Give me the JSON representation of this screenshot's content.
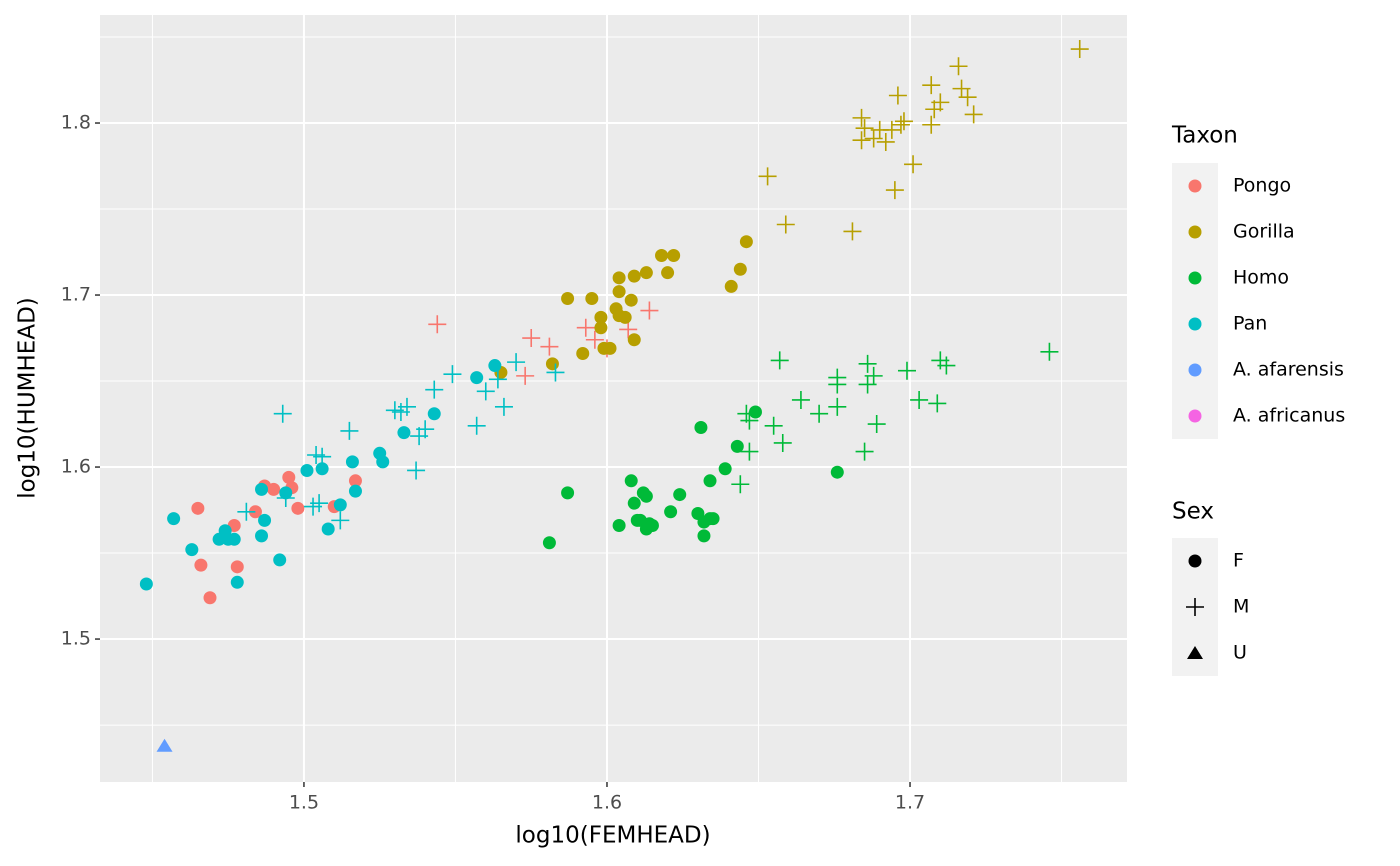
{
  "chart_data": {
    "type": "scatter",
    "x_label": "log10(FEMHEAD)",
    "y_label": "log10(HUMHEAD)",
    "xlim": [
      1.4327,
      1.7716
    ],
    "ylim": [
      1.4169,
      1.8628
    ],
    "xticks": [
      {
        "value": 1.5,
        "label": "1.5"
      },
      {
        "value": 1.6,
        "label": "1.6"
      },
      {
        "value": 1.7,
        "label": "1.7"
      }
    ],
    "yticks": [
      {
        "value": 1.5,
        "label": "1.5"
      },
      {
        "value": 1.6,
        "label": "1.6"
      },
      {
        "value": 1.7,
        "label": "1.7"
      },
      {
        "value": 1.8,
        "label": "1.8"
      }
    ],
    "grid": true,
    "color_legend_title": "Taxon",
    "shape_legend": {
      "title": "Sex",
      "labels": [
        "F",
        "M",
        "U"
      ],
      "shapes": [
        "circle",
        "plus",
        "triangle"
      ]
    },
    "series": [
      {
        "name": "Pongo",
        "color": "#F8766D",
        "x": [
          1.465,
          1.466,
          1.469,
          1.477,
          1.478,
          1.484,
          1.487,
          1.49,
          1.495,
          1.496,
          1.498,
          1.51,
          1.517,
          1.544,
          1.575,
          1.573,
          1.581,
          1.593,
          1.596,
          1.6,
          1.607,
          1.614
        ],
        "y": [
          1.576,
          1.543,
          1.524,
          1.566,
          1.542,
          1.574,
          1.589,
          1.587,
          1.594,
          1.588,
          1.576,
          1.577,
          1.592,
          1.683,
          1.675,
          1.653,
          1.67,
          1.681,
          1.674,
          1.669,
          1.68,
          1.691
        ],
        "sex": [
          "F",
          "F",
          "F",
          "F",
          "F",
          "F",
          "F",
          "F",
          "F",
          "F",
          "F",
          "F",
          "F",
          "M",
          "M",
          "M",
          "M",
          "M",
          "M",
          "M",
          "M",
          "M"
        ]
      },
      {
        "name": "Gorilla",
        "color": "#B79F00",
        "x": [
          1.565,
          1.582,
          1.587,
          1.592,
          1.595,
          1.598,
          1.598,
          1.599,
          1.601,
          1.603,
          1.604,
          1.604,
          1.604,
          1.606,
          1.608,
          1.609,
          1.609,
          1.613,
          1.618,
          1.62,
          1.622,
          1.641,
          1.644,
          1.646,
          1.653,
          1.659,
          1.681,
          1.684,
          1.684,
          1.685,
          1.688,
          1.69,
          1.692,
          1.694,
          1.695,
          1.696,
          1.697,
          1.698,
          1.701,
          1.707,
          1.707,
          1.708,
          1.71,
          1.716,
          1.717,
          1.719,
          1.721,
          1.756
        ],
        "y": [
          1.655,
          1.66,
          1.698,
          1.666,
          1.698,
          1.687,
          1.681,
          1.669,
          1.669,
          1.692,
          1.71,
          1.702,
          1.688,
          1.687,
          1.697,
          1.711,
          1.674,
          1.713,
          1.723,
          1.713,
          1.723,
          1.705,
          1.715,
          1.731,
          1.769,
          1.741,
          1.737,
          1.79,
          1.803,
          1.797,
          1.791,
          1.796,
          1.789,
          1.796,
          1.761,
          1.816,
          1.799,
          1.801,
          1.776,
          1.822,
          1.799,
          1.808,
          1.812,
          1.833,
          1.82,
          1.815,
          1.805,
          1.843
        ],
        "sex": [
          "F",
          "F",
          "F",
          "F",
          "F",
          "F",
          "F",
          "F",
          "F",
          "F",
          "F",
          "F",
          "F",
          "F",
          "F",
          "F",
          "F",
          "F",
          "F",
          "F",
          "F",
          "F",
          "F",
          "F",
          "M",
          "M",
          "M",
          "M",
          "M",
          "M",
          "M",
          "M",
          "M",
          "M",
          "M",
          "M",
          "M",
          "M",
          "M",
          "M",
          "M",
          "M",
          "M",
          "M",
          "M",
          "M",
          "M",
          "M"
        ]
      },
      {
        "name": "Homo",
        "color": "#00BA38",
        "x": [
          1.581,
          1.587,
          1.604,
          1.608,
          1.609,
          1.61,
          1.611,
          1.612,
          1.613,
          1.613,
          1.614,
          1.615,
          1.621,
          1.624,
          1.63,
          1.631,
          1.632,
          1.632,
          1.634,
          1.634,
          1.635,
          1.639,
          1.643,
          1.649,
          1.676,
          1.644,
          1.646,
          1.647,
          1.647,
          1.655,
          1.657,
          1.658,
          1.664,
          1.67,
          1.676,
          1.676,
          1.676,
          1.685,
          1.686,
          1.686,
          1.688,
          1.689,
          1.699,
          1.703,
          1.709,
          1.71,
          1.712,
          1.746
        ],
        "y": [
          1.556,
          1.585,
          1.566,
          1.592,
          1.579,
          1.569,
          1.569,
          1.585,
          1.564,
          1.583,
          1.567,
          1.566,
          1.574,
          1.584,
          1.573,
          1.623,
          1.568,
          1.56,
          1.57,
          1.592,
          1.57,
          1.599,
          1.612,
          1.632,
          1.597,
          1.59,
          1.631,
          1.627,
          1.609,
          1.624,
          1.662,
          1.614,
          1.639,
          1.631,
          1.648,
          1.635,
          1.652,
          1.609,
          1.66,
          1.648,
          1.653,
          1.625,
          1.656,
          1.639,
          1.637,
          1.662,
          1.659,
          1.667
        ],
        "sex": [
          "F",
          "F",
          "F",
          "F",
          "F",
          "F",
          "F",
          "F",
          "F",
          "F",
          "F",
          "F",
          "F",
          "F",
          "F",
          "F",
          "F",
          "F",
          "F",
          "F",
          "F",
          "F",
          "F",
          "F",
          "F",
          "M",
          "M",
          "M",
          "M",
          "M",
          "M",
          "M",
          "M",
          "M",
          "M",
          "M",
          "M",
          "M",
          "M",
          "M",
          "M",
          "M",
          "M",
          "M",
          "M",
          "M",
          "M",
          "M"
        ]
      },
      {
        "name": "Pan",
        "color": "#00BFC4",
        "x": [
          1.448,
          1.457,
          1.463,
          1.472,
          1.474,
          1.475,
          1.477,
          1.478,
          1.486,
          1.486,
          1.487,
          1.492,
          1.494,
          1.501,
          1.506,
          1.508,
          1.512,
          1.516,
          1.517,
          1.525,
          1.526,
          1.533,
          1.543,
          1.557,
          1.563,
          1.481,
          1.493,
          1.494,
          1.504,
          1.505,
          1.506,
          1.503,
          1.512,
          1.515,
          1.53,
          1.532,
          1.534,
          1.537,
          1.538,
          1.54,
          1.543,
          1.549,
          1.557,
          1.56,
          1.566,
          1.57,
          1.564,
          1.583
        ],
        "y": [
          1.532,
          1.57,
          1.552,
          1.558,
          1.563,
          1.558,
          1.558,
          1.533,
          1.56,
          1.587,
          1.569,
          1.546,
          1.585,
          1.598,
          1.599,
          1.564,
          1.578,
          1.603,
          1.586,
          1.608,
          1.603,
          1.62,
          1.631,
          1.652,
          1.659,
          1.574,
          1.631,
          1.582,
          1.607,
          1.579,
          1.606,
          1.577,
          1.569,
          1.621,
          1.633,
          1.632,
          1.635,
          1.598,
          1.618,
          1.622,
          1.645,
          1.654,
          1.624,
          1.644,
          1.635,
          1.661,
          1.651,
          1.655
        ],
        "sex": [
          "F",
          "F",
          "F",
          "F",
          "F",
          "F",
          "F",
          "F",
          "F",
          "F",
          "F",
          "F",
          "F",
          "F",
          "F",
          "F",
          "F",
          "F",
          "F",
          "F",
          "F",
          "F",
          "F",
          "F",
          "F",
          "M",
          "M",
          "M",
          "M",
          "M",
          "M",
          "M",
          "M",
          "M",
          "M",
          "M",
          "M",
          "M",
          "M",
          "M",
          "M",
          "M",
          "M",
          "M",
          "M",
          "M",
          "M",
          "M"
        ]
      },
      {
        "name": "A. afarensis",
        "color": "#619CFF",
        "x": [
          1.454
        ],
        "y": [
          1.438
        ],
        "sex": [
          "U"
        ]
      },
      {
        "name": "A. africanus",
        "color": "#F564E3",
        "x": [],
        "y": [],
        "sex": []
      }
    ]
  }
}
